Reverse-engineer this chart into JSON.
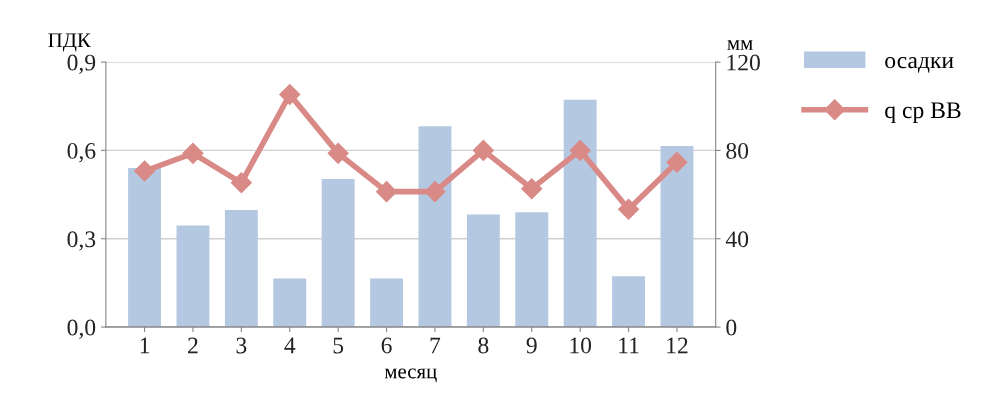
{
  "chart_data": {
    "type": "bar",
    "xlabel": "месяц",
    "ylabel": "ПДК",
    "y2label": "мм",
    "categories": [
      "1",
      "2",
      "3",
      "4",
      "5",
      "6",
      "7",
      "8",
      "9",
      "10",
      "11",
      "12"
    ],
    "series": [
      {
        "name": "осадки",
        "axis": "y2",
        "color": "#b4c8e2",
        "values": [
          72,
          46,
          53,
          22,
          67,
          22,
          91,
          51,
          52,
          103,
          23,
          82
        ]
      },
      {
        "name": "q ср ВВ",
        "type": "line",
        "axis": "y",
        "color": "#d98a87",
        "marker": "diamond",
        "values": [
          0.53,
          0.59,
          0.49,
          0.79,
          0.59,
          0.46,
          0.46,
          0.6,
          0.47,
          0.6,
          0.4,
          0.56
        ]
      }
    ],
    "ylim": [
      0,
      0.9
    ],
    "yticks": [
      {
        "value": 0,
        "label": "0,0"
      },
      {
        "value": 0.3,
        "label": "0,3"
      },
      {
        "value": 0.6,
        "label": "0,6"
      },
      {
        "value": 0.9,
        "label": "0,9"
      }
    ],
    "y2lim": [
      0,
      120
    ],
    "y2ticks": [
      0,
      40,
      80,
      120
    ],
    "grid": "y",
    "legend": "top right"
  }
}
